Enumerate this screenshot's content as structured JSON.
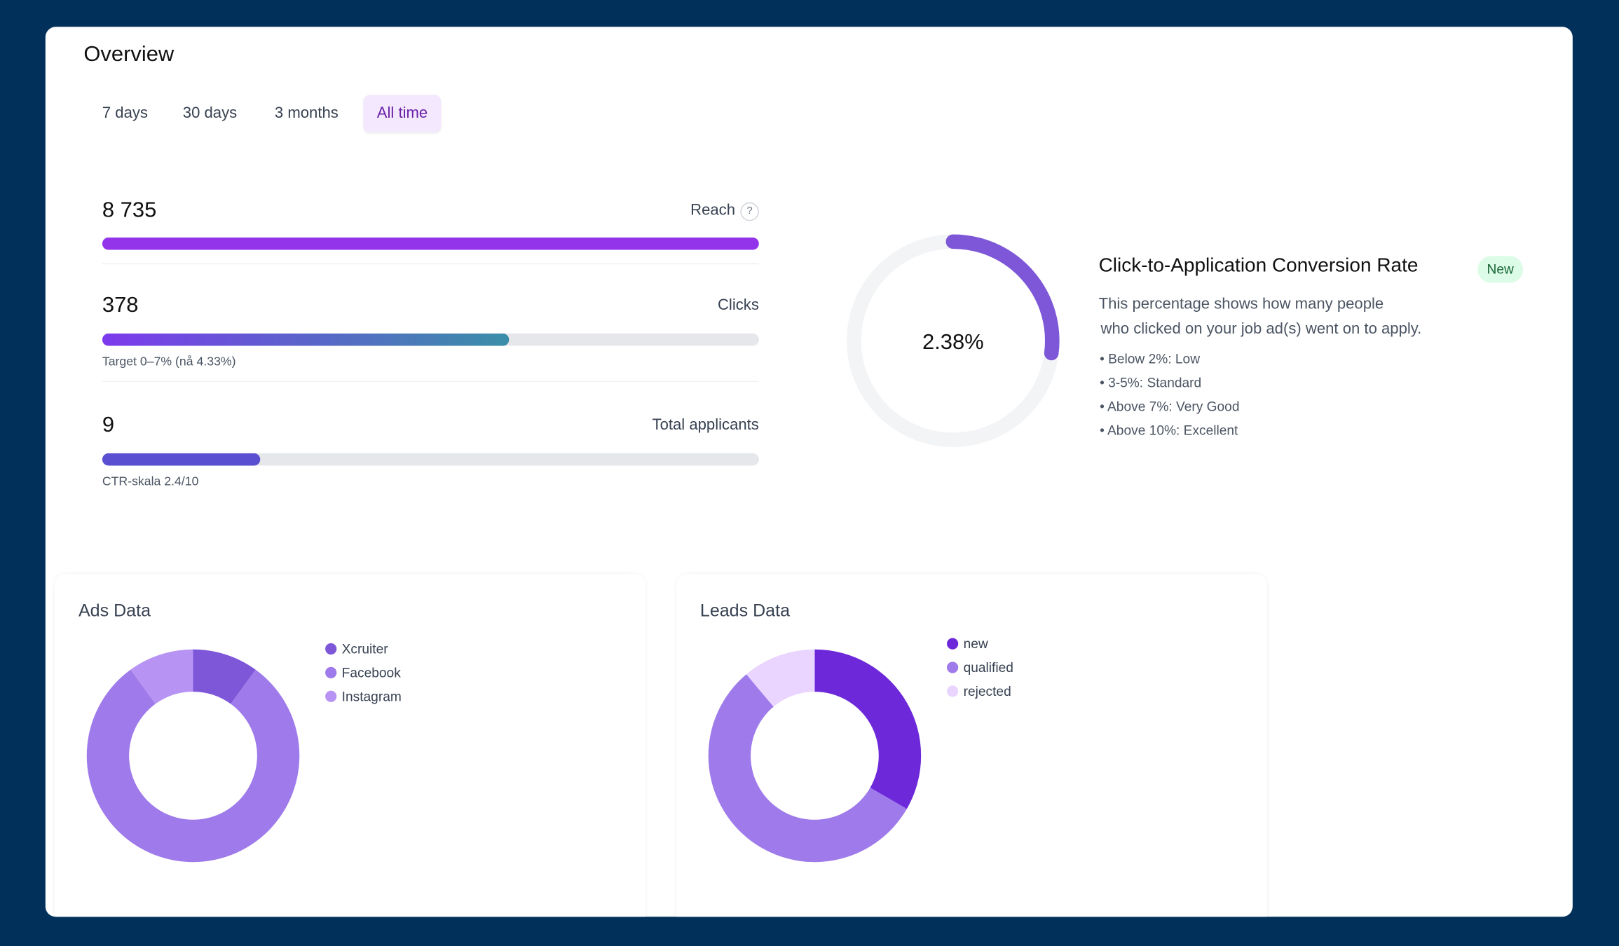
{
  "header": {
    "title": "Overview"
  },
  "tabs": [
    {
      "label": "7 days"
    },
    {
      "label": "30 days"
    },
    {
      "label": "3 months"
    },
    {
      "label": "All time",
      "active": true
    }
  ],
  "metrics": [
    {
      "value": "8 735",
      "label": "Reach",
      "help": "?",
      "progress": 1.0,
      "caption": "",
      "color": "#9333ea"
    },
    {
      "value": "378",
      "label": "Clicks",
      "progress": 0.619,
      "caption": "Target 0–7% (nå 4.33%)",
      "color_from": "#7c3aed",
      "color_to": "#3a8ea8"
    },
    {
      "value": "9",
      "label": "Total applicants",
      "progress": 0.24,
      "caption": "CTR-skala 2.4/10",
      "color": "#5b4fd1"
    }
  ],
  "conversion": {
    "value": "2.38%",
    "gauge_fraction": 0.27,
    "color": "#7e57d8",
    "title": "Click-to-Application Conversion Rate",
    "badge": "New",
    "description": [
      "This percentage shows how many people",
      "who clicked on your job ad(s) went on to apply."
    ],
    "bullets": [
      "• Below 2%: Low",
      "• 3-5%: Standard",
      "• Above 7%: Very Good",
      "• Above 10%: Excellent"
    ]
  },
  "chart_data": [
    {
      "type": "pie",
      "donut": true,
      "title": "Ads Data",
      "categories": [
        "Xcruiter",
        "Facebook",
        "Instagram"
      ],
      "values": [
        10,
        80,
        10
      ],
      "colors": [
        "#7e57d8",
        "#9f7aea",
        "#b794f4"
      ],
      "legend": "right"
    },
    {
      "type": "pie",
      "donut": true,
      "title": "Leads Data",
      "categories": [
        "new",
        "qualified",
        "rejected"
      ],
      "values": [
        3,
        5,
        1
      ],
      "colors": [
        "#6d28d9",
        "#9f7aea",
        "#e9d5ff"
      ],
      "legend": "right"
    }
  ]
}
